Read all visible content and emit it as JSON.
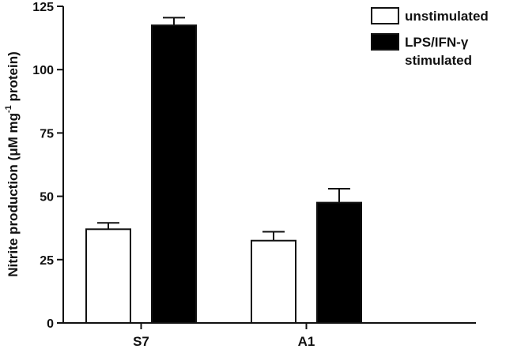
{
  "chart_data": {
    "type": "bar",
    "categories": [
      "S7",
      "A1"
    ],
    "series": [
      {
        "name": "unstimulated",
        "values": [
          37,
          32.5
        ],
        "errors": [
          2.5,
          3.5
        ],
        "color": "#ffffff"
      },
      {
        "name": "LPS/IFN-γ stimulated",
        "values": [
          117.5,
          47.5
        ],
        "errors": [
          3,
          5.5
        ],
        "color": "#000000"
      }
    ],
    "ylabel": {
      "prefix": "Nitrite production (",
      "mu": "μ",
      "unit": "M mg",
      "sup": "-1",
      "suffix": " protein)"
    },
    "ylim": [
      0,
      125
    ],
    "yticks": [
      "0",
      "25",
      "50",
      "75",
      "100",
      "125"
    ],
    "legend": {
      "position": "top-right",
      "entries": [
        {
          "lines": [
            "unstimulated"
          ]
        },
        {
          "lines": [
            "LPS/IFN-γ",
            "stimulated"
          ]
        }
      ]
    },
    "grid": false
  }
}
